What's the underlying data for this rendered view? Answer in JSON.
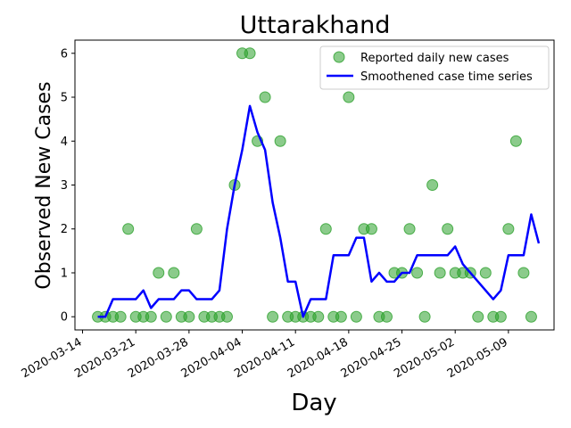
{
  "chart_data": {
    "type": "scatter+line",
    "title": "Uttarakhand",
    "xlabel": "Day",
    "ylabel": "Observed New Cases",
    "x_tick_labels": [
      "2020-03-14",
      "2020-03-21",
      "2020-03-28",
      "2020-04-04",
      "2020-04-11",
      "2020-04-18",
      "2020-04-25",
      "2020-05-02",
      "2020-05-09"
    ],
    "y_tick_labels": [
      "0",
      "1",
      "2",
      "3",
      "4",
      "5",
      "6"
    ],
    "xlim": [
      "2020-03-13",
      "2020-05-15"
    ],
    "ylim": [
      -0.3,
      6.3
    ],
    "legend_position": "top-right",
    "series": [
      {
        "name": "Reported daily new cases",
        "kind": "scatter",
        "color": "#2ca02c",
        "start_date": "2020-03-16",
        "values": [
          0,
          0,
          0,
          0,
          2,
          0,
          0,
          0,
          1,
          0,
          1,
          0,
          0,
          2,
          0,
          0,
          0,
          0,
          3,
          6,
          6,
          4,
          5,
          0,
          4,
          0,
          0,
          0,
          0,
          0,
          2,
          0,
          0,
          5,
          0,
          2,
          2,
          0,
          0,
          1,
          1,
          2,
          1,
          0,
          3,
          1,
          2,
          1,
          1,
          1,
          0,
          1,
          0,
          0,
          2,
          4,
          1,
          0
        ]
      },
      {
        "name": "Smoothened case time series",
        "kind": "line",
        "color": "#0000ff",
        "start_date": "2020-03-16",
        "values": [
          0,
          0,
          0.4,
          0.4,
          0.4,
          0.4,
          0.6,
          0.2,
          0.4,
          0.4,
          0.4,
          0.6,
          0.6,
          0.4,
          0.4,
          0.4,
          0.6,
          2.0,
          3.0,
          3.8,
          4.8,
          4.2,
          3.8,
          2.6,
          1.8,
          0.8,
          0.8,
          0,
          0.4,
          0.4,
          0.4,
          1.4,
          1.4,
          1.4,
          1.8,
          1.8,
          0.8,
          1.0,
          0.8,
          0.8,
          1.0,
          1.0,
          1.4,
          1.4,
          1.4,
          1.4,
          1.4,
          1.6,
          1.2,
          1.0,
          0.8,
          0.6,
          0.4,
          0.6,
          1.4,
          1.4,
          1.4,
          2.33,
          1.67
        ]
      }
    ]
  }
}
